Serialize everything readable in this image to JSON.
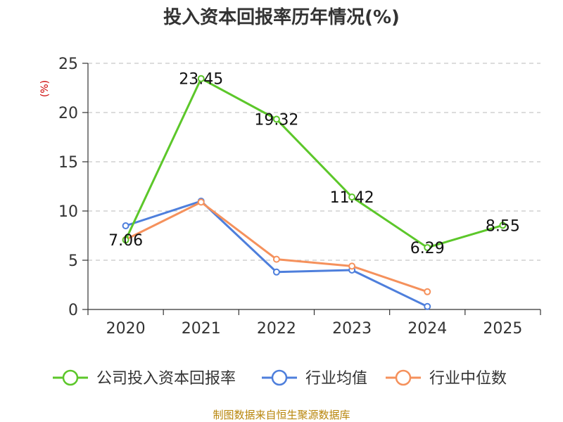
{
  "chart_data": {
    "type": "line",
    "title": "投入资本回报率历年情况(%)",
    "ylabel": "(%)",
    "xlabel": "",
    "categories": [
      "2020",
      "2021",
      "2022",
      "2023",
      "2024",
      "2025"
    ],
    "ylim": [
      0,
      25
    ],
    "yticks": [
      0,
      5,
      10,
      15,
      20,
      25
    ],
    "grid": "horizontal-dashed",
    "legend_position": "bottom",
    "series": [
      {
        "name": "公司投入资本回报率",
        "color": "#5cc72a",
        "values": [
          7.06,
          23.45,
          19.32,
          11.42,
          6.29,
          8.55
        ],
        "labels": [
          "7.06",
          "23.45",
          "19.32",
          "11.42",
          "6.29",
          "8.55"
        ]
      },
      {
        "name": "行业均值",
        "color": "#4e7fdc",
        "values": [
          8.5,
          11.0,
          3.8,
          4.0,
          0.3,
          null
        ]
      },
      {
        "name": "行业中位数",
        "color": "#f5915c",
        "values": [
          7.1,
          10.9,
          5.1,
          4.4,
          1.8,
          null
        ]
      }
    ]
  },
  "source": "制图数据来自恒生聚源数据库"
}
